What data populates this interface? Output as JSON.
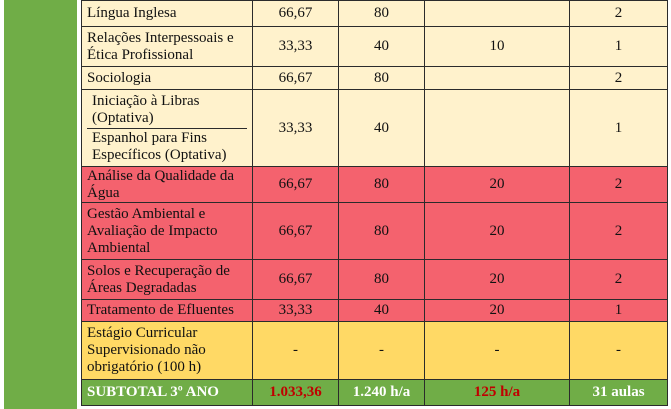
{
  "rows": [
    {
      "disc": "Língua Inglesa",
      "ch1": "66,67",
      "ch2": "80",
      "c3": "",
      "c4": "2"
    },
    {
      "disc": "Relações Interpessoais e Ética Profissional",
      "ch1": "33,33",
      "ch2": "40",
      "c3": "10",
      "c4": "1"
    },
    {
      "disc": "Sociologia",
      "ch1": "66,67",
      "ch2": "80",
      "c3": "",
      "c4": "2"
    },
    {
      "disc_a": "Iniciação à Libras (Optativa)",
      "disc_b": "Espanhol para Fins Específicos (Optativa)",
      "ch1": "33,33",
      "ch2": "40",
      "c3": "",
      "c4": "1"
    },
    {
      "disc": "Análise da Qualidade da Água",
      "ch1": "66,67",
      "ch2": "80",
      "c3": "20",
      "c4": "2"
    },
    {
      "disc": "Gestão Ambiental e Avaliação de Impacto Ambiental",
      "ch1": "66,67",
      "ch2": "80",
      "c3": "20",
      "c4": "2"
    },
    {
      "disc": "Solos e Recuperação de Áreas Degradadas",
      "ch1": "66,67",
      "ch2": "80",
      "c3": "20",
      "c4": "2"
    },
    {
      "disc": "Tratamento de Efluentes",
      "ch1": "33,33",
      "ch2": "40",
      "c3": "20",
      "c4": "1"
    },
    {
      "disc": "Estágio Curricular Supervisionado não obrigatório (100 h)",
      "ch1": "-",
      "ch2": "-",
      "c3": "-",
      "c4": "-"
    }
  ],
  "subtotal": {
    "label": "SUBTOTAL 3º ANO",
    "ch1": "1.033,36",
    "ch2": "1.240 h/a",
    "c3": "125 h/a",
    "c4": "31 aulas"
  },
  "colors": {
    "yellow_row": "#fff2cc",
    "red_row": "#f4626e",
    "orange_row": "#ffd965",
    "green": "#70ad47",
    "dark_red_text": "#c00000"
  }
}
